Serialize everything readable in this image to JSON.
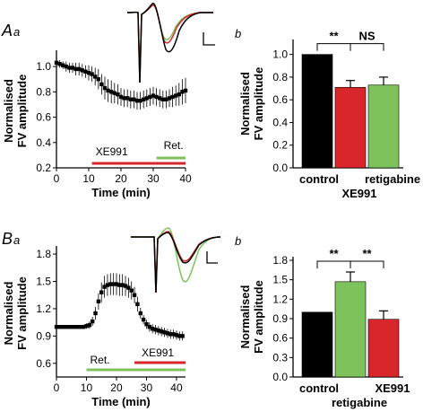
{
  "panels": {
    "Aa": {
      "letter": "A",
      "sub": "a"
    },
    "Ab": {
      "sub": "b"
    },
    "Ba": {
      "letter": "B",
      "sub": "a"
    },
    "Bb": {
      "sub": "b"
    }
  },
  "colors": {
    "control": "#000000",
    "xe991": "#d9262b",
    "retigabine": "#7dc25a",
    "ns_text": "#000000"
  },
  "chart_data": [
    {
      "id": "Aa",
      "type": "scatter",
      "xlabel": "Time (min)",
      "ylabel": [
        "Normalised",
        "FV amplitude"
      ],
      "xlim": [
        0,
        40
      ],
      "ylim": [
        0.2,
        1.1
      ],
      "xticks": [
        0,
        10,
        20,
        30,
        40
      ],
      "yticks": [
        0.2,
        0.4,
        0.6,
        0.8,
        1.0
      ],
      "bars": [
        {
          "label": "XE991",
          "from": 11,
          "to": 40,
          "color": "#d9262b"
        },
        {
          "label": "Ret.",
          "from": 31,
          "to": 40,
          "color": "#7dc25a"
        }
      ],
      "x": [
        0,
        1,
        2,
        3,
        4,
        5,
        6,
        7,
        8,
        9,
        10,
        11,
        12,
        13,
        14,
        15,
        16,
        17,
        18,
        19,
        20,
        21,
        22,
        23,
        24,
        25,
        26,
        27,
        28,
        29,
        30,
        31,
        32,
        33,
        34,
        35,
        36,
        37,
        38,
        39,
        40
      ],
      "y": [
        1.03,
        1.02,
        1.01,
        1.0,
        0.99,
        0.99,
        0.98,
        0.98,
        0.97,
        0.96,
        0.95,
        0.94,
        0.92,
        0.9,
        0.86,
        0.83,
        0.81,
        0.8,
        0.79,
        0.78,
        0.76,
        0.75,
        0.75,
        0.74,
        0.74,
        0.73,
        0.73,
        0.74,
        0.75,
        0.76,
        0.77,
        0.76,
        0.75,
        0.74,
        0.74,
        0.75,
        0.76,
        0.77,
        0.78,
        0.8,
        0.81
      ],
      "err": [
        0.04,
        0.03,
        0.03,
        0.04,
        0.04,
        0.04,
        0.05,
        0.05,
        0.05,
        0.05,
        0.06,
        0.06,
        0.07,
        0.08,
        0.08,
        0.09,
        0.09,
        0.09,
        0.08,
        0.08,
        0.07,
        0.07,
        0.07,
        0.07,
        0.07,
        0.07,
        0.07,
        0.07,
        0.07,
        0.07,
        0.07,
        0.07,
        0.07,
        0.07,
        0.07,
        0.07,
        0.08,
        0.08,
        0.09,
        0.1,
        0.1
      ]
    },
    {
      "id": "Ab",
      "type": "bar",
      "ylabel": [
        "Normalised",
        "FV amplitude"
      ],
      "ylim": [
        0,
        1.1
      ],
      "yticks": [
        0.0,
        0.2,
        0.4,
        0.6,
        0.8,
        1.0
      ],
      "categories": [
        "control",
        "XE991",
        "retigabine"
      ],
      "tick_labels": [
        "control",
        "",
        "retigabine"
      ],
      "group_label": "XE991",
      "values": [
        1.0,
        0.71,
        0.73
      ],
      "errors": [
        0.0,
        0.06,
        0.07
      ],
      "colors": [
        "#000000",
        "#d9262b",
        "#7dc25a"
      ],
      "significance": [
        {
          "from": 0,
          "to": 1,
          "label": "**"
        },
        {
          "from": 1,
          "to": 2,
          "label": "NS"
        }
      ]
    },
    {
      "id": "Ba",
      "type": "scatter",
      "xlabel": "Time (min)",
      "ylabel": [
        "Normalised",
        "FV amplitude"
      ],
      "xlim": [
        0,
        43
      ],
      "ylim": [
        0.45,
        1.85
      ],
      "xticks": [
        0,
        10,
        20,
        30,
        40
      ],
      "yticks": [
        0.6,
        0.9,
        1.2,
        1.5,
        1.8
      ],
      "bars": [
        {
          "label": "Ret.",
          "from": 10,
          "to": 43,
          "color": "#7dc25a"
        },
        {
          "label": "XE991",
          "from": 26,
          "to": 43,
          "color": "#d9262b"
        }
      ],
      "x": [
        0,
        1,
        2,
        3,
        4,
        5,
        6,
        7,
        8,
        9,
        10,
        11,
        12,
        13,
        14,
        15,
        16,
        17,
        18,
        19,
        20,
        21,
        22,
        23,
        24,
        25,
        26,
        27,
        28,
        29,
        30,
        31,
        32,
        33,
        34,
        35,
        36,
        37,
        38,
        39,
        40,
        41,
        42
      ],
      "y": [
        1.0,
        1.0,
        1.0,
        1.0,
        1.0,
        1.0,
        1.0,
        1.0,
        1.0,
        1.0,
        1.01,
        1.02,
        1.06,
        1.15,
        1.28,
        1.38,
        1.44,
        1.46,
        1.47,
        1.47,
        1.47,
        1.46,
        1.46,
        1.45,
        1.43,
        1.4,
        1.35,
        1.25,
        1.15,
        1.08,
        1.03,
        1.0,
        0.98,
        0.97,
        0.96,
        0.95,
        0.94,
        0.93,
        0.92,
        0.92,
        0.91,
        0.9,
        0.9
      ],
      "err": [
        0.02,
        0.02,
        0.02,
        0.02,
        0.02,
        0.02,
        0.02,
        0.02,
        0.02,
        0.02,
        0.03,
        0.04,
        0.05,
        0.07,
        0.09,
        0.11,
        0.12,
        0.12,
        0.12,
        0.12,
        0.12,
        0.12,
        0.12,
        0.11,
        0.11,
        0.1,
        0.09,
        0.08,
        0.06,
        0.05,
        0.05,
        0.05,
        0.05,
        0.05,
        0.05,
        0.05,
        0.05,
        0.05,
        0.05,
        0.05,
        0.05,
        0.05,
        0.05
      ]
    },
    {
      "id": "Bb",
      "type": "bar",
      "ylabel": [
        "Normalised",
        "FV amplitude"
      ],
      "ylim": [
        0,
        1.8
      ],
      "yticks": [
        0.0,
        0.3,
        0.6,
        0.9,
        1.2,
        1.5,
        1.8
      ],
      "categories": [
        "control",
        "retigabine",
        "XE991"
      ],
      "tick_labels": [
        "control",
        "",
        "XE991"
      ],
      "group_label": "retigabine",
      "values": [
        1.0,
        1.47,
        0.89
      ],
      "errors": [
        0.0,
        0.15,
        0.13
      ],
      "colors": [
        "#000000",
        "#7dc25a",
        "#d9262b"
      ],
      "significance": [
        {
          "from": 0,
          "to": 1,
          "label": "**"
        },
        {
          "from": 1,
          "to": 2,
          "label": "**"
        }
      ]
    }
  ]
}
